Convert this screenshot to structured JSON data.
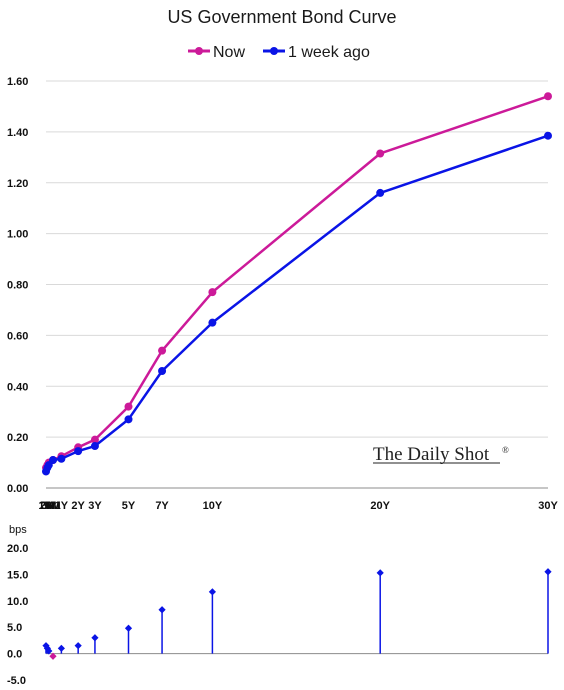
{
  "chart_data": [
    {
      "type": "line",
      "title": "US Government Bond Curve",
      "categories": [
        "1M",
        "2M",
        "3M",
        "6M",
        "1Y",
        "2Y",
        "3Y",
        "5Y",
        "7Y",
        "10Y",
        "20Y",
        "30Y"
      ],
      "x_years": [
        0.0833,
        0.1667,
        0.25,
        0.5,
        1,
        2,
        3,
        5,
        7,
        10,
        20,
        30
      ],
      "series": [
        {
          "name": "Now",
          "color": "#cc1a99",
          "values": [
            0.08,
            0.09,
            0.1,
            0.11,
            0.125,
            0.16,
            0.19,
            0.32,
            0.54,
            0.77,
            1.315,
            1.54
          ]
        },
        {
          "name": "1 week ago",
          "color": "#0a14e6",
          "values": [
            0.065,
            0.08,
            0.09,
            0.11,
            0.115,
            0.145,
            0.165,
            0.27,
            0.46,
            0.65,
            1.16,
            1.385
          ]
        }
      ],
      "ylim": [
        0,
        1.6
      ],
      "yticks": [
        "0.00",
        "0.20",
        "0.40",
        "0.60",
        "0.80",
        "1.00",
        "1.20",
        "1.40",
        "1.60"
      ],
      "grid": true,
      "legend": "top-center",
      "watermark": "The Daily Shot"
    },
    {
      "type": "stem",
      "ylabel": "bps",
      "categories": [
        "1M",
        "2M",
        "3M",
        "6M",
        "1Y",
        "2Y",
        "3Y",
        "5Y",
        "7Y",
        "10Y",
        "20Y",
        "30Y"
      ],
      "values": [
        1.5,
        1.0,
        0.5,
        -0.5,
        1.0,
        1.5,
        3.0,
        4.8,
        8.3,
        11.7,
        15.3,
        15.5
      ],
      "positive_color": "#0a14e6",
      "negative_color": "#cc1a99",
      "ylim": [
        -5,
        20
      ],
      "yticks": [
        "-5.0",
        "0.0",
        "5.0",
        "10.0",
        "15.0",
        "20.0"
      ]
    }
  ]
}
